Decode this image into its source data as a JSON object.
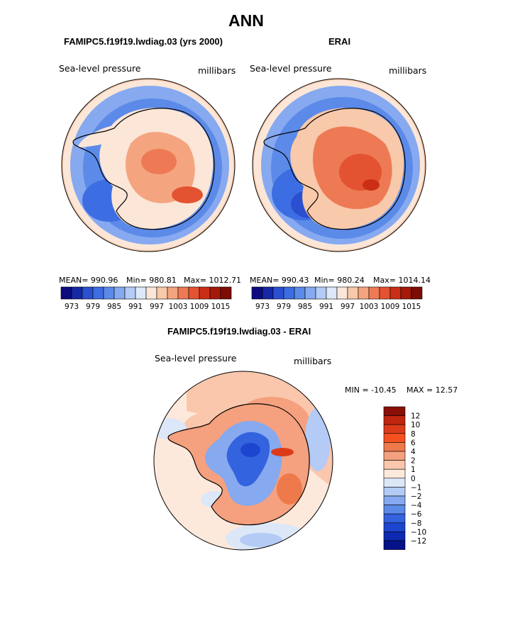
{
  "figure": {
    "title": "ANN"
  },
  "chart_data": [
    {
      "type": "heatmap",
      "projection": "south-polar stereographic",
      "title": "FAMIPC5.f19f19.lwdiag.03 (yrs 2000)",
      "field_label": "Sea-level pressure",
      "units": "millibars",
      "stats": {
        "mean_label": "MEAN= 990.96",
        "min_label": "Min= 980.81",
        "max_label": "Max= 1012.71",
        "mean": 990.96,
        "min": 980.81,
        "max": 1012.71
      },
      "colorbar": {
        "levels": [
          973,
          976,
          979,
          982,
          985,
          988,
          991,
          994,
          997,
          1000,
          1003,
          1006,
          1009,
          1012,
          1015
        ],
        "tick_labels": [
          "973",
          "979",
          "985",
          "991",
          "997",
          "1003",
          "1009",
          "1015"
        ],
        "colors": [
          "#0c0c7e",
          "#1628a6",
          "#2a4fd0",
          "#3d6de2",
          "#5c8ae8",
          "#86a9f0",
          "#b3cbf5",
          "#dde8f8",
          "#fbe6d8",
          "#f8c9aa",
          "#f4a57f",
          "#ed7a54",
          "#e45331",
          "#cb2e16",
          "#a31a0a",
          "#7d0c04"
        ]
      }
    },
    {
      "type": "heatmap",
      "projection": "south-polar stereographic",
      "title": "ERAI",
      "field_label": "Sea-level pressure",
      "units": "millibars",
      "stats": {
        "mean_label": "MEAN= 990.43",
        "min_label": "Min= 980.24",
        "max_label": "Max= 1014.14",
        "mean": 990.43,
        "min": 980.24,
        "max": 1014.14
      },
      "colorbar": {
        "levels": [
          973,
          976,
          979,
          982,
          985,
          988,
          991,
          994,
          997,
          1000,
          1003,
          1006,
          1009,
          1012,
          1015
        ],
        "tick_labels": [
          "973",
          "979",
          "985",
          "991",
          "997",
          "1003",
          "1009",
          "1015"
        ],
        "colors": [
          "#0c0c7e",
          "#1628a6",
          "#2a4fd0",
          "#3d6de2",
          "#5c8ae8",
          "#86a9f0",
          "#b3cbf5",
          "#dde8f8",
          "#fbe6d8",
          "#f8c9aa",
          "#f4a57f",
          "#ed7a54",
          "#e45331",
          "#cb2e16",
          "#a31a0a",
          "#7d0c04"
        ]
      }
    },
    {
      "type": "heatmap",
      "projection": "south-polar stereographic",
      "title": "FAMIPC5.f19f19.lwdiag.03 - ERAI",
      "field_label": "Sea-level pressure",
      "units": "millibars",
      "stats": {
        "min_label": "MIN = -10.45",
        "max_label": "MAX = 12.57",
        "min": -10.45,
        "max": 12.57
      },
      "colorbar": {
        "levels": [
          -12,
          -10,
          -8,
          -6,
          -4,
          -2,
          -1,
          0,
          1,
          2,
          4,
          6,
          8,
          10,
          12
        ],
        "tick_labels": [
          "12",
          "10",
          "8",
          "6",
          "4",
          "2",
          "1",
          "0",
          "−1",
          "−2",
          "−4",
          "−6",
          "−8",
          "−10",
          "−12"
        ],
        "colors": [
          "#8a0f07",
          "#c0250f",
          "#dc3b1a",
          "#f4511f",
          "#ee7a4c",
          "#f5a07e",
          "#fac7ad",
          "#fde9dc",
          "#dce7f8",
          "#b3cbf5",
          "#86a9f0",
          "#5c8ae8",
          "#3463df",
          "#1c46d0",
          "#0e2ab2",
          "#06128a"
        ]
      }
    }
  ]
}
